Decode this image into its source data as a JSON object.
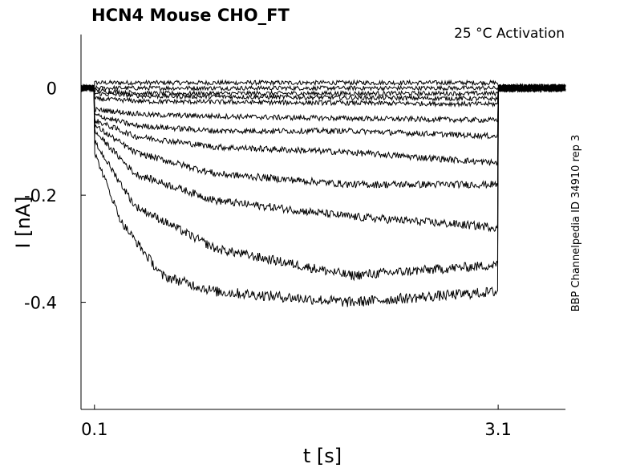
{
  "chart_data": {
    "type": "line",
    "title": "HCN4  Mouse  CHO_FT",
    "subtitle": "25 °C  Activation",
    "side_label": "BBP Channelpedia ID 34910 rep 3",
    "xlabel": "t [s]",
    "ylabel": "I [nA]",
    "xlim": [
      0.0,
      3.6
    ],
    "ylim": [
      -0.6,
      0.1
    ],
    "xticks": [
      0.1,
      3.1
    ],
    "xtick_labels": [
      "0.1",
      "3.1"
    ],
    "yticks": [
      0,
      -0.2,
      -0.4
    ],
    "ytick_labels": [
      "0",
      "-0.2",
      "-0.4"
    ],
    "grid": false,
    "stimulus_window": [
      0.1,
      3.1
    ],
    "series": [
      {
        "values": [
          [
            0.1,
            0.01
          ],
          [
            3.1,
            0.01
          ]
        ]
      },
      {
        "values": [
          [
            0.1,
            0.0
          ],
          [
            3.1,
            0.0
          ]
        ]
      },
      {
        "values": [
          [
            0.1,
            -0.005
          ],
          [
            0.5,
            -0.01
          ],
          [
            3.1,
            -0.01
          ]
        ]
      },
      {
        "values": [
          [
            0.1,
            -0.01
          ],
          [
            0.5,
            -0.015
          ],
          [
            3.1,
            -0.02
          ]
        ]
      },
      {
        "values": [
          [
            0.1,
            -0.02
          ],
          [
            0.5,
            -0.025
          ],
          [
            3.1,
            -0.03
          ]
        ]
      },
      {
        "values": [
          [
            0.1,
            -0.04
          ],
          [
            0.5,
            -0.05
          ],
          [
            1.5,
            -0.055
          ],
          [
            3.1,
            -0.06
          ]
        ]
      },
      {
        "values": [
          [
            0.1,
            -0.05
          ],
          [
            0.4,
            -0.07
          ],
          [
            1.0,
            -0.08
          ],
          [
            2.0,
            -0.08
          ],
          [
            3.1,
            -0.09
          ]
        ]
      },
      {
        "values": [
          [
            0.1,
            -0.06
          ],
          [
            0.4,
            -0.09
          ],
          [
            1.0,
            -0.11
          ],
          [
            2.0,
            -0.12
          ],
          [
            3.1,
            -0.14
          ]
        ]
      },
      {
        "values": [
          [
            0.1,
            -0.07
          ],
          [
            0.4,
            -0.12
          ],
          [
            1.0,
            -0.16
          ],
          [
            2.0,
            -0.18
          ],
          [
            3.1,
            -0.18
          ]
        ]
      },
      {
        "values": [
          [
            0.1,
            -0.08
          ],
          [
            0.4,
            -0.16
          ],
          [
            1.0,
            -0.21
          ],
          [
            2.0,
            -0.24
          ],
          [
            3.1,
            -0.26
          ]
        ]
      },
      {
        "values": [
          [
            0.1,
            -0.1
          ],
          [
            0.4,
            -0.22
          ],
          [
            1.0,
            -0.3
          ],
          [
            1.4,
            -0.32
          ],
          [
            2.0,
            -0.35
          ],
          [
            3.1,
            -0.33
          ]
        ]
      },
      {
        "values": [
          [
            0.1,
            -0.12
          ],
          [
            0.3,
            -0.25
          ],
          [
            0.6,
            -0.35
          ],
          [
            1.0,
            -0.38
          ],
          [
            1.5,
            -0.39
          ],
          [
            2.0,
            -0.4
          ],
          [
            3.1,
            -0.38
          ]
        ]
      }
    ]
  }
}
